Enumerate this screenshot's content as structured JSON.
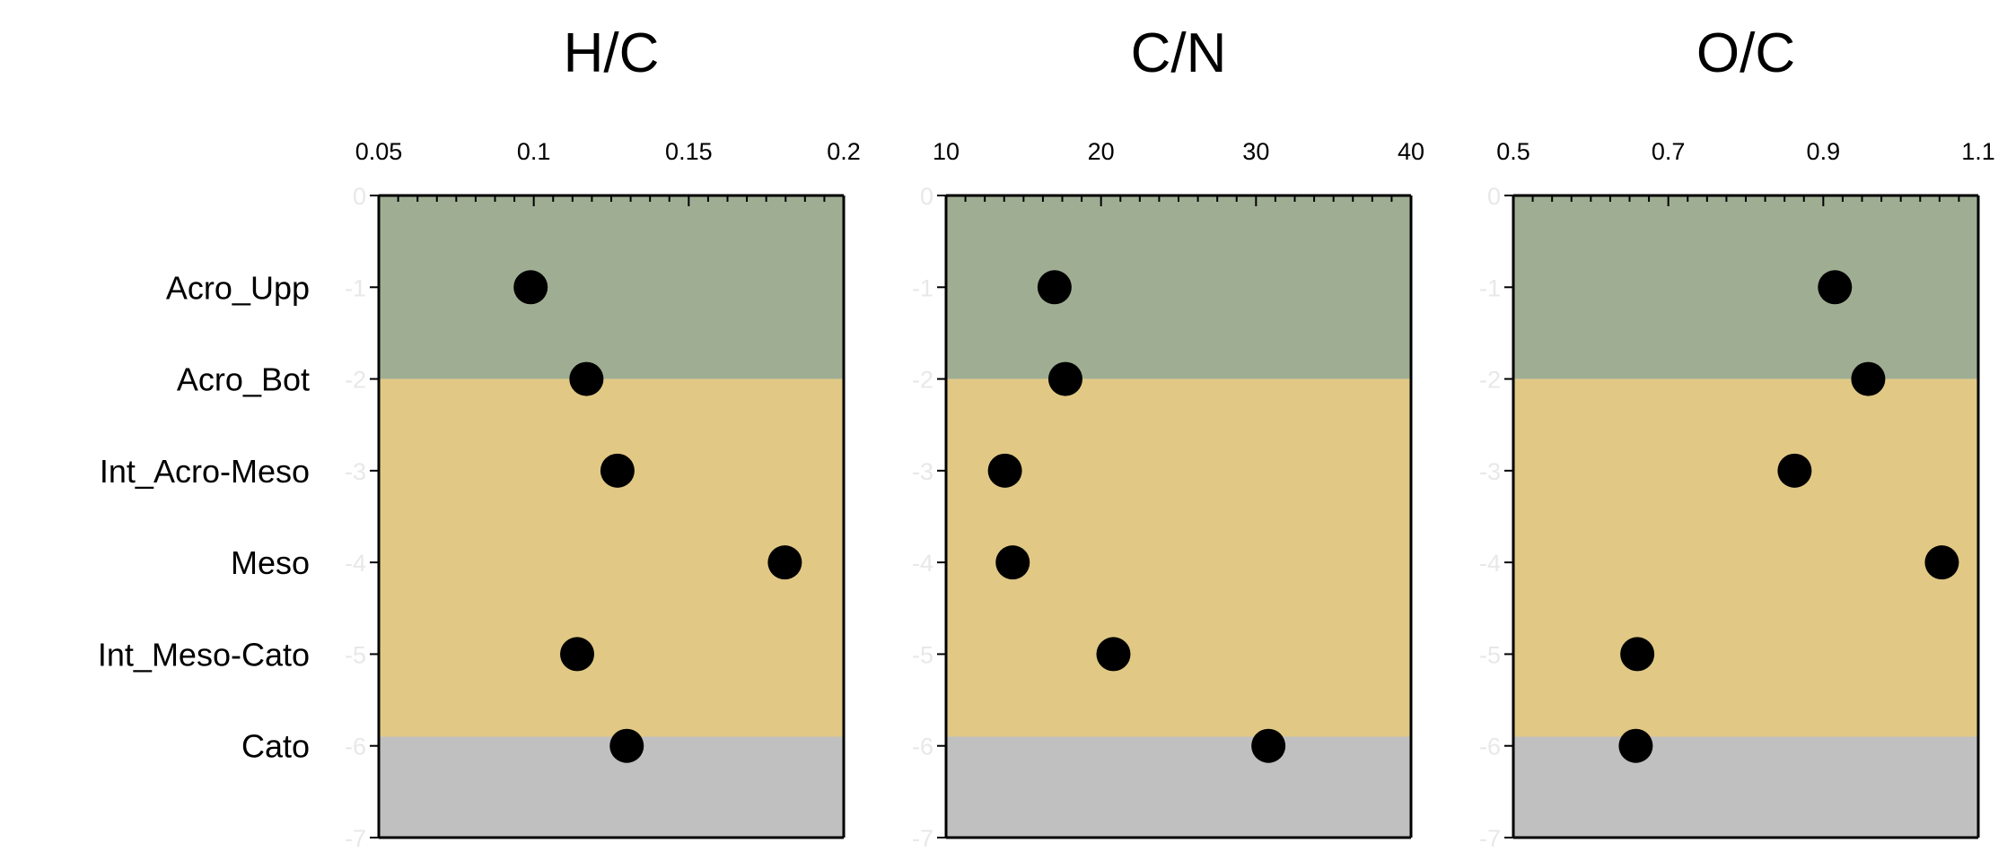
{
  "chart_data": [
    {
      "type": "scatter",
      "title": "H/C",
      "xlim": [
        0.05,
        0.2
      ],
      "xticks": [
        "0.05",
        "0.1",
        "0.15",
        "0.2"
      ],
      "ylim": [
        -7,
        0
      ],
      "yticks": [
        "0",
        "-1",
        "-2",
        "-3",
        "-4",
        "-5",
        "-6",
        "-7"
      ],
      "categories": [
        "Acro_Upp",
        "Acro_Bot",
        "Int_Acro-Meso",
        "Meso",
        "Int_Meso-Cato",
        "Cato"
      ],
      "y": [
        -1,
        -2,
        -3,
        -4,
        -5,
        -6
      ],
      "values": [
        0.099,
        0.117,
        0.127,
        0.181,
        0.114,
        0.13
      ],
      "bands": [
        {
          "from": 0,
          "to": -2,
          "color": "#9fae93"
        },
        {
          "from": -2,
          "to": -5.9,
          "color": "#e1c985"
        },
        {
          "from": -5.9,
          "to": -7,
          "color": "#c0c0c0"
        }
      ]
    },
    {
      "type": "scatter",
      "title": "C/N",
      "xlim": [
        10,
        40
      ],
      "xticks": [
        "10",
        "20",
        "30",
        "40"
      ],
      "ylim": [
        -7,
        0
      ],
      "yticks": [
        "0",
        "-1",
        "-2",
        "-3",
        "-4",
        "-5",
        "-6",
        "-7"
      ],
      "categories": [
        "Acro_Upp",
        "Acro_Bot",
        "Int_Acro-Meso",
        "Meso",
        "Int_Meso-Cato",
        "Cato"
      ],
      "y": [
        -1,
        -2,
        -3,
        -4,
        -5,
        -6
      ],
      "values": [
        17.0,
        17.7,
        13.8,
        14.3,
        20.8,
        30.8
      ],
      "bands": [
        {
          "from": 0,
          "to": -2,
          "color": "#9fae93"
        },
        {
          "from": -2,
          "to": -5.9,
          "color": "#e1c985"
        },
        {
          "from": -5.9,
          "to": -7,
          "color": "#c0c0c0"
        }
      ]
    },
    {
      "type": "scatter",
      "title": "O/C",
      "xlim": [
        0.5,
        1.1
      ],
      "xticks": [
        "0.5",
        "0.7",
        "0.9",
        "1.1"
      ],
      "ylim": [
        -7,
        0
      ],
      "yticks": [
        "0",
        "-1",
        "-2",
        "-3",
        "-4",
        "-5",
        "-6",
        "-7"
      ],
      "categories": [
        "Acro_Upp",
        "Acro_Bot",
        "Int_Acro-Meso",
        "Meso",
        "Int_Meso-Cato",
        "Cato"
      ],
      "y": [
        -1,
        -2,
        -3,
        -4,
        -5,
        -6
      ],
      "values": [
        0.915,
        0.958,
        0.863,
        1.053,
        0.66,
        0.658
      ],
      "bands": [
        {
          "from": 0,
          "to": -2,
          "color": "#9fae93"
        },
        {
          "from": -2,
          "to": -5.9,
          "color": "#e1c985"
        },
        {
          "from": -5.9,
          "to": -7,
          "color": "#c0c0c0"
        }
      ]
    }
  ]
}
